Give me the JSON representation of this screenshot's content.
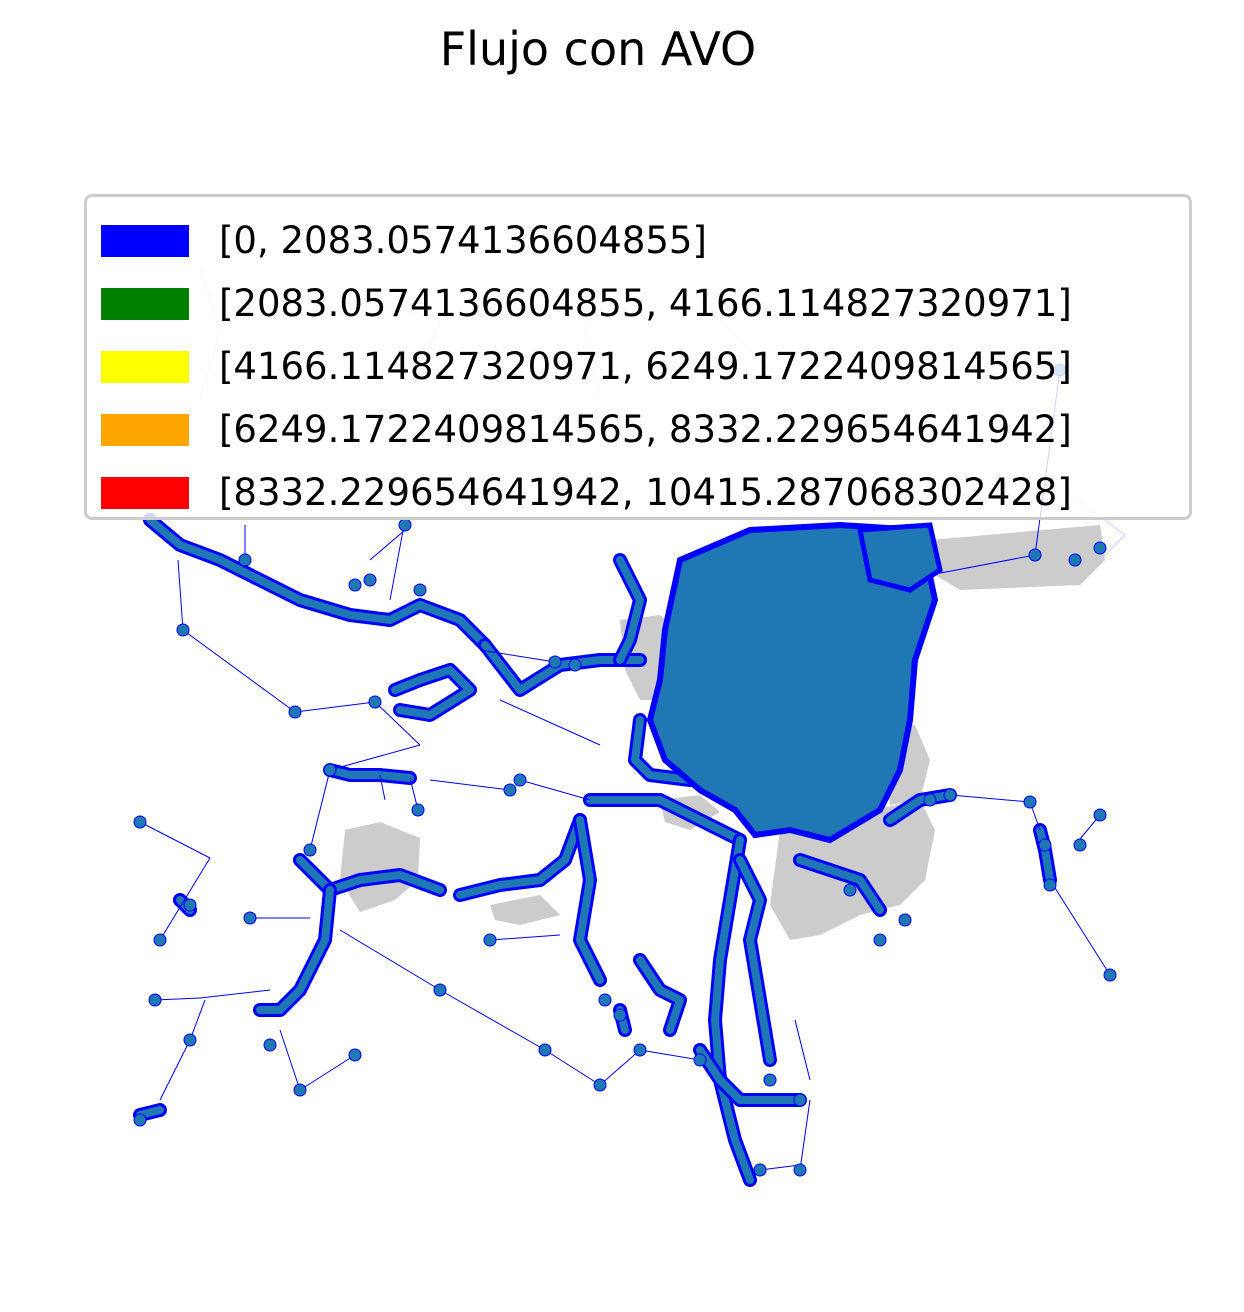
{
  "title": "Flujo con AVO",
  "legend": {
    "items": [
      {
        "label": "[0, 2083.0574136604855]",
        "color": "#0000ff"
      },
      {
        "label": "[2083.0574136604855, 4166.114827320971]",
        "color": "#008000"
      },
      {
        "label": "[4166.114827320971, 6249.1722409814565]",
        "color": "#ffff00"
      },
      {
        "label": "[6249.1722409814565, 8332.229654641942]",
        "color": "#ffa500"
      },
      {
        "label": "[8332.229654641942, 10415.287068302428]",
        "color": "#ff0000"
      }
    ]
  },
  "colors": {
    "background_regions": "#cccccc",
    "node": "#1f77b4",
    "edge": "#0000ff"
  }
}
